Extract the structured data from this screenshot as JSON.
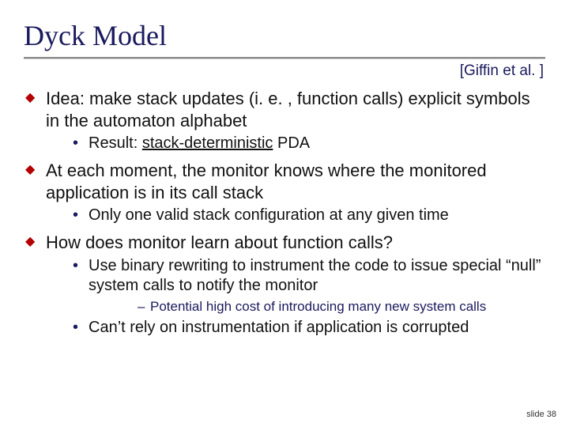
{
  "title": "Dyck Model",
  "citation": "[Giffin et al. ]",
  "colors": {
    "title": "#1a1a5e",
    "diamond": "#b30000",
    "dot": "#1a1a5e",
    "dash": "#1a1a5e",
    "body": "#111111",
    "bg": "#ffffff"
  },
  "bullets": {
    "b1": "Idea: make stack updates (i. e. , function calls) explicit symbols in the automaton alphabet",
    "b1_1_pre": "Result: ",
    "b1_1_u": "stack-deterministic",
    "b1_1_post": " PDA",
    "b2": "At each moment, the monitor knows where the monitored application is in its call stack",
    "b2_1": "Only one valid stack configuration at any given time",
    "b3": "How does monitor learn about function calls?",
    "b3_1": "Use binary rewriting to instrument the code to issue special “null” system calls to notify the monitor",
    "b3_1_1": "Potential high cost of introducing many new system calls",
    "b3_2": "Can’t rely on instrumentation if application is corrupted"
  },
  "slide_number": "slide 38"
}
